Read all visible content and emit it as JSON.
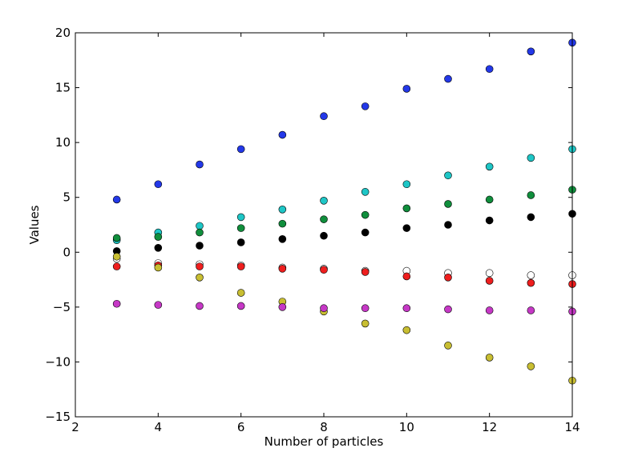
{
  "chart_data": {
    "type": "scatter",
    "title": "",
    "xlabel": "Number of particles",
    "ylabel": "Values",
    "xlim": [
      2,
      14
    ],
    "ylim": [
      -15,
      20
    ],
    "xticks": [
      2,
      4,
      6,
      8,
      10,
      12,
      14
    ],
    "xtick_labels": [
      "2",
      "4",
      "6",
      "8",
      "10",
      "12",
      "14"
    ],
    "yticks": [
      -15,
      -10,
      -5,
      0,
      5,
      10,
      15,
      20
    ],
    "ytick_labels": [
      "−15",
      "−10",
      "−5",
      "0",
      "5",
      "10",
      "15",
      "20"
    ],
    "grid": false,
    "legend": "none",
    "x": [
      3,
      4,
      5,
      6,
      7,
      8,
      9,
      10,
      11,
      12,
      13,
      14
    ],
    "series": [
      {
        "color": "#2338e8",
        "values": [
          4.8,
          6.2,
          8.0,
          9.4,
          10.7,
          12.4,
          13.3,
          14.9,
          15.8,
          16.7,
          18.3,
          19.1
        ]
      },
      {
        "color": "#1ec6c6",
        "values": [
          1.1,
          1.8,
          2.4,
          3.2,
          3.9,
          4.7,
          5.5,
          6.2,
          7.0,
          7.8,
          8.6,
          9.4
        ]
      },
      {
        "color": "#108e3c",
        "values": [
          1.3,
          1.4,
          1.8,
          2.2,
          2.6,
          3.0,
          3.4,
          4.0,
          4.4,
          4.8,
          5.2,
          5.7
        ]
      },
      {
        "color": "#000000",
        "values": [
          0.1,
          0.4,
          0.6,
          0.9,
          1.2,
          1.5,
          1.8,
          2.2,
          2.5,
          2.9,
          3.2,
          3.5
        ]
      },
      {
        "color": "#ffffff",
        "values": [
          -0.6,
          -1.0,
          -1.1,
          -1.2,
          -1.4,
          -1.5,
          -1.7,
          -1.7,
          -1.9,
          -1.9,
          -2.1,
          -2.1
        ]
      },
      {
        "color": "#ee1e1e",
        "values": [
          -1.3,
          -1.2,
          -1.3,
          -1.3,
          -1.5,
          -1.6,
          -1.8,
          -2.2,
          -2.3,
          -2.6,
          -2.8,
          -2.9
        ]
      },
      {
        "color": "#c8be32",
        "values": [
          -0.4,
          -1.4,
          -2.3,
          -3.7,
          -4.5,
          -5.4,
          -6.5,
          -7.1,
          -8.5,
          -9.6,
          -10.4,
          -11.7
        ]
      },
      {
        "color": "#c638c6",
        "values": [
          -4.7,
          -4.8,
          -4.9,
          -4.9,
          -5.0,
          -5.1,
          -5.1,
          -5.1,
          -5.2,
          -5.3,
          -5.3,
          -5.4
        ]
      }
    ]
  }
}
